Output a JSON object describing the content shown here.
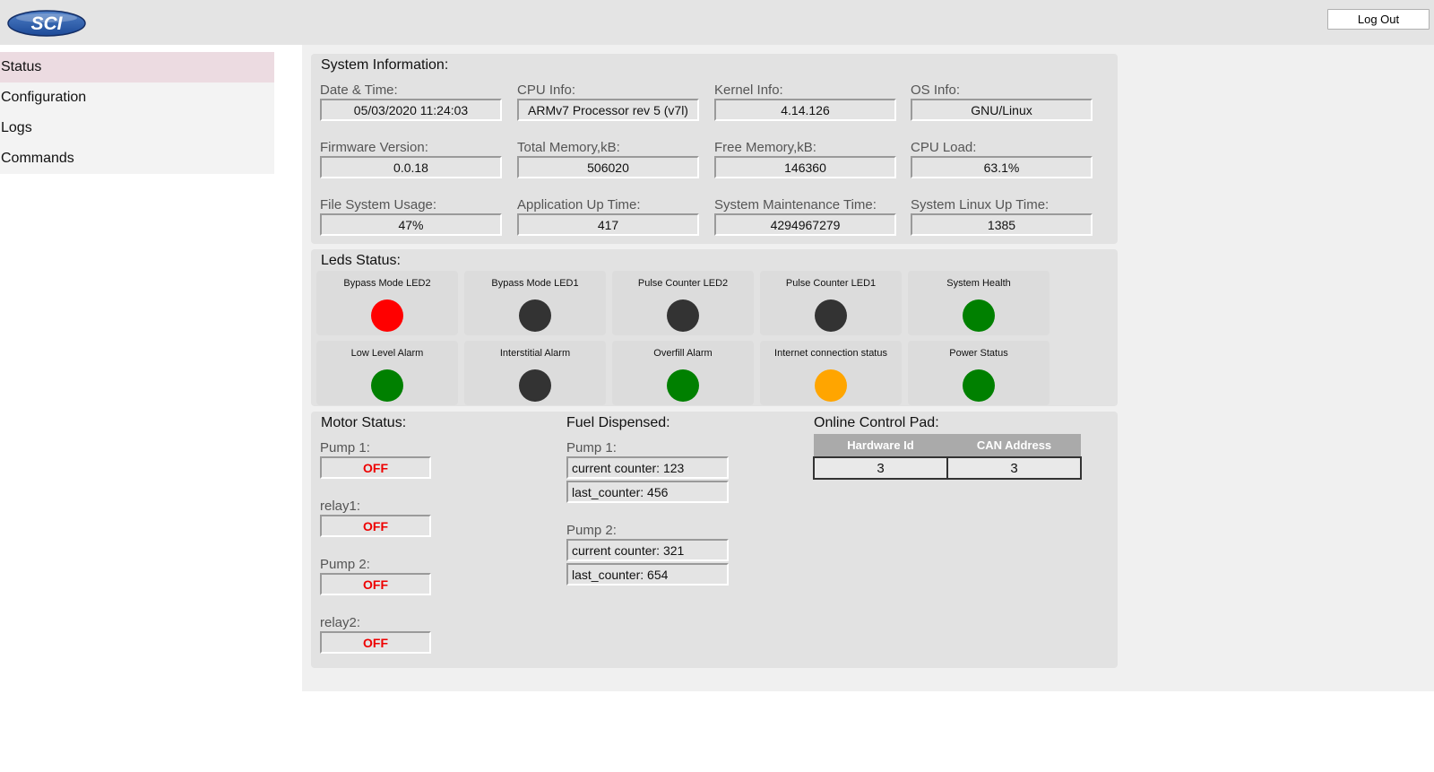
{
  "header": {
    "logo_text": "SCI",
    "logout_label": "Log Out"
  },
  "sidebar": {
    "items": [
      {
        "label": "Status"
      },
      {
        "label": "Configuration"
      },
      {
        "label": "Logs"
      },
      {
        "label": "Commands"
      }
    ],
    "active": "Status"
  },
  "system_info": {
    "title": "System Information:",
    "fields": [
      {
        "label": "Date & Time:",
        "value": "05/03/2020 11:24:03"
      },
      {
        "label": "CPU Info:",
        "value": "ARMv7 Processor rev 5 (v7l)"
      },
      {
        "label": "Kernel Info:",
        "value": "4.14.126"
      },
      {
        "label": "OS Info:",
        "value": "GNU/Linux"
      },
      {
        "label": "Firmware Version:",
        "value": "0.0.18"
      },
      {
        "label": "Total Memory,kB:",
        "value": "506020"
      },
      {
        "label": "Free Memory,kB:",
        "value": "146360"
      },
      {
        "label": "CPU Load:",
        "value": "63.1%"
      },
      {
        "label": "File System Usage:",
        "value": "47%"
      },
      {
        "label": "Application Up Time:",
        "value": "417"
      },
      {
        "label": "System Maintenance Time:",
        "value": "4294967279"
      },
      {
        "label": "System Linux Up Time:",
        "value": "1385"
      }
    ]
  },
  "leds": {
    "title": "Leds Status:",
    "items": [
      {
        "label": "Bypass Mode LED2",
        "color": "#ff0000"
      },
      {
        "label": "Bypass Mode LED1",
        "color": "#333333"
      },
      {
        "label": "Pulse Counter LED2",
        "color": "#333333"
      },
      {
        "label": "Pulse Counter LED1",
        "color": "#333333"
      },
      {
        "label": "System Health",
        "color": "#008000"
      },
      {
        "label": "Low Level Alarm",
        "color": "#008000"
      },
      {
        "label": "Interstitial Alarm",
        "color": "#333333"
      },
      {
        "label": "Overfill Alarm",
        "color": "#008000"
      },
      {
        "label": "Internet connection status",
        "color": "#ffa500"
      },
      {
        "label": "Power Status",
        "color": "#008000"
      }
    ]
  },
  "motor": {
    "title": "Motor Status:",
    "items": [
      {
        "label": "Pump 1:",
        "value": "OFF"
      },
      {
        "label": "relay1:",
        "value": "OFF"
      },
      {
        "label": "Pump 2:",
        "value": "OFF"
      },
      {
        "label": "relay2:",
        "value": "OFF"
      }
    ]
  },
  "fuel": {
    "title": "Fuel Dispensed:",
    "pumps": [
      {
        "label": "Pump 1:",
        "current": "current counter: 123",
        "last": "last_counter: 456"
      },
      {
        "label": "Pump 2:",
        "current": "current counter: 321",
        "last": "last_counter: 654"
      }
    ]
  },
  "control_pad": {
    "title": "Online Control Pad:",
    "headers": [
      "Hardware Id",
      "CAN Address"
    ],
    "rows": [
      [
        "3",
        "3"
      ]
    ]
  }
}
